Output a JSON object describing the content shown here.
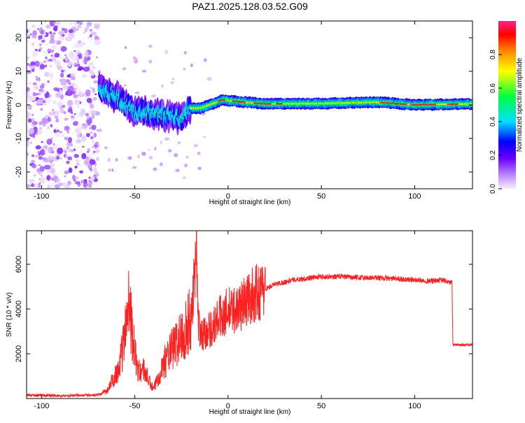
{
  "title": "PAZ1.2025.128.03.52.G09",
  "chart_data": [
    {
      "type": "heatmap",
      "title": "PAZ1.2025.128.03.52.G09",
      "xlabel": "Height of straight line (km)",
      "ylabel": "Frequency (Hz)",
      "xlim": [
        -108,
        131
      ],
      "ylim": [
        -25,
        25
      ],
      "xticks": [
        -100,
        -50,
        0,
        50,
        100
      ],
      "yticks": [
        -20,
        -10,
        0,
        10,
        20
      ],
      "xtick_labels": [
        "-100",
        "-50",
        "0",
        "50",
        "100"
      ],
      "ytick_labels": [
        "-20",
        "-10",
        "0",
        "10",
        "20"
      ],
      "colorbar": {
        "label": "Normalized spectral amplitude",
        "range": [
          0,
          1
        ],
        "ticks": [
          0.0,
          0.2,
          0.4,
          0.6,
          0.8
        ],
        "tick_labels": [
          "0.0",
          "0.2",
          "0.4",
          "0.6",
          "0.8"
        ],
        "colormap": [
          "#f2e6ff",
          "#8a2be2",
          "#0000ff",
          "#00ffff",
          "#00ff00",
          "#ffff00",
          "#ff8c00",
          "#ff0000",
          "#ff1493"
        ]
      },
      "ridge": {
        "description_points": [
          {
            "x": -68,
            "f": 4.5
          },
          {
            "x": -60,
            "f": 2.5
          },
          {
            "x": -50,
            "f": -2
          },
          {
            "x": -40,
            "f": -2.5
          },
          {
            "x": -30,
            "f": -3.5
          },
          {
            "x": -25,
            "f": -4
          },
          {
            "x": -20,
            "f": -1
          },
          {
            "x": -15,
            "f": -1
          },
          {
            "x": -7,
            "f": 0.5
          },
          {
            "x": -3,
            "f": 1.5
          },
          {
            "x": 5,
            "f": 1
          },
          {
            "x": 20,
            "f": 0.3
          },
          {
            "x": 50,
            "f": 0.4
          },
          {
            "x": 80,
            "f": 0.8
          },
          {
            "x": 100,
            "f": 0
          },
          {
            "x": 131,
            "f": 0.3
          }
        ],
        "noise_region_x": [
          -108,
          -70
        ]
      }
    },
    {
      "type": "line",
      "xlabel": "Height of straight line (km)",
      "ylabel": "SNR (10 * v/v)",
      "xlim": [
        -108,
        131
      ],
      "ylim": [
        0,
        7500
      ],
      "xticks": [
        -100,
        -50,
        0,
        50,
        100
      ],
      "yticks": [
        2000,
        4000,
        6000
      ],
      "xtick_labels": [
        "-100",
        "-50",
        "0",
        "50",
        "100"
      ],
      "ytick_labels": [
        "2000",
        "4000",
        "6000"
      ],
      "line_color": "#ff2020",
      "series": [
        {
          "name": "SNR",
          "x": [
            -108,
            -100,
            -90,
            -80,
            -70,
            -65,
            -62,
            -58,
            -55,
            -53,
            -52,
            -50,
            -48,
            -45,
            -42,
            -40,
            -35,
            -30,
            -25,
            -20,
            -18,
            -17,
            -16,
            -15,
            -12,
            -8,
            -5,
            -2,
            0,
            5,
            10,
            15,
            20,
            25,
            30,
            35,
            40,
            45,
            50,
            60,
            70,
            80,
            90,
            100,
            110,
            115,
            118,
            120,
            120.5,
            125,
            131
          ],
          "y": [
            150,
            150,
            120,
            150,
            150,
            300,
            800,
            1500,
            3000,
            5000,
            3500,
            2000,
            1200,
            1300,
            700,
            400,
            1500,
            2200,
            2800,
            3500,
            5500,
            7400,
            3500,
            2800,
            3000,
            3200,
            3600,
            3800,
            3900,
            4000,
            4400,
            4700,
            4900,
            5100,
            5200,
            5300,
            5350,
            5400,
            5450,
            5450,
            5400,
            5400,
            5350,
            5300,
            5250,
            5300,
            5200,
            5200,
            2400,
            2400,
            2400
          ]
        }
      ]
    }
  ]
}
